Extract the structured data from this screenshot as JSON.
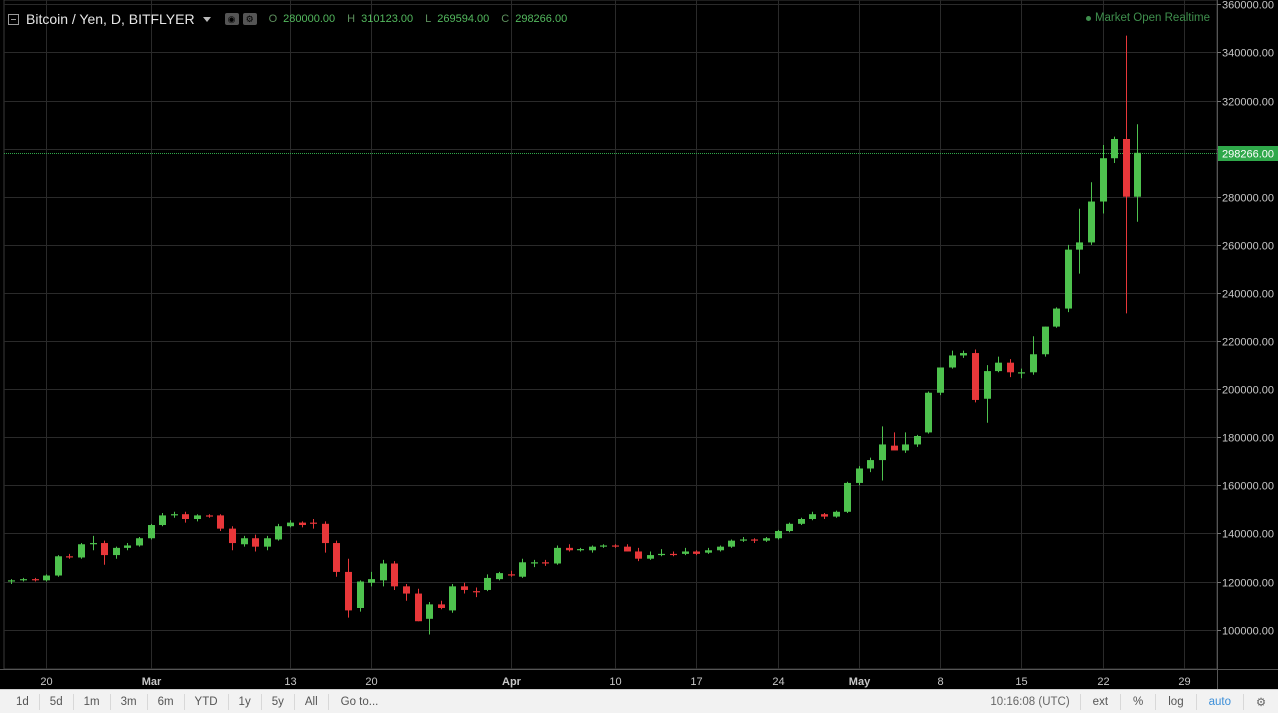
{
  "legend": {
    "title": "Bitcoin / Yen, D, BITFLYER",
    "ohlc": [
      {
        "key": "O",
        "value": "280000.00"
      },
      {
        "key": "H",
        "value": "310123.00"
      },
      {
        "key": "L",
        "value": "269594.00"
      },
      {
        "key": "C",
        "value": "298266.00"
      }
    ]
  },
  "status": {
    "text": "Market Open Realtime",
    "color": "#3f8f4d"
  },
  "colors": {
    "up": "#4ec24e",
    "down": "#e8373a",
    "grid": "#2a2a2a",
    "last_price": "#2fa84a"
  },
  "chart_data": {
    "type": "candlestick",
    "title": "Bitcoin / Yen, D, BITFLYER",
    "y_ticks": [
      "100000.00",
      "120000.00",
      "140000.00",
      "160000.00",
      "180000.00",
      "200000.00",
      "220000.00",
      "240000.00",
      "260000.00",
      "280000.00",
      "300000.00",
      "320000.00",
      "340000.00",
      "360000.00"
    ],
    "ylim": [
      88000,
      362000
    ],
    "last_price": 298266,
    "last_price_label": "298266.00",
    "x_ticks": [
      {
        "label": "20",
        "index": 3
      },
      {
        "label": "Mar",
        "index": 12,
        "bold": true
      },
      {
        "label": "13",
        "index": 24
      },
      {
        "label": "20",
        "index": 31
      },
      {
        "label": "Apr",
        "index": 43,
        "bold": true
      },
      {
        "label": "10",
        "index": 52
      },
      {
        "label": "17",
        "index": 59
      },
      {
        "label": "24",
        "index": 66
      },
      {
        "label": "May",
        "index": 73,
        "bold": true
      },
      {
        "label": "8",
        "index": 80
      },
      {
        "label": "15",
        "index": 87
      },
      {
        "label": "22",
        "index": 94
      },
      {
        "label": "29",
        "index": 101
      }
    ],
    "candles": [
      [
        120000,
        121000,
        119000,
        120500
      ],
      [
        120500,
        121500,
        120000,
        121000
      ],
      [
        121000,
        121500,
        120000,
        120500
      ],
      [
        120500,
        123000,
        120000,
        122500
      ],
      [
        122500,
        131000,
        122000,
        130500
      ],
      [
        130500,
        131500,
        129500,
        130000
      ],
      [
        130000,
        136000,
        129500,
        135500
      ],
      [
        135500,
        139000,
        133000,
        136000
      ],
      [
        136000,
        137000,
        127000,
        131000
      ],
      [
        131000,
        134500,
        129500,
        134000
      ],
      [
        134000,
        136000,
        133000,
        135000
      ],
      [
        135000,
        138500,
        134500,
        138000
      ],
      [
        138000,
        144000,
        137500,
        143500
      ],
      [
        143500,
        148500,
        143000,
        147500
      ],
      [
        147500,
        149000,
        146500,
        148000
      ],
      [
        148000,
        149000,
        144500,
        146000
      ],
      [
        146000,
        148000,
        145000,
        147500
      ],
      [
        147500,
        148000,
        146500,
        147000
      ],
      [
        147500,
        148000,
        141000,
        142000
      ],
      [
        142000,
        143000,
        133000,
        136000
      ],
      [
        135500,
        139000,
        134500,
        138000
      ],
      [
        138000,
        139500,
        132500,
        134500
      ],
      [
        134500,
        139000,
        133000,
        138000
      ],
      [
        137500,
        144000,
        137000,
        143000
      ],
      [
        143000,
        145500,
        142500,
        144500
      ],
      [
        144500,
        145000,
        142500,
        143500
      ],
      [
        144500,
        146000,
        142000,
        144000
      ],
      [
        144000,
        145000,
        132000,
        136000
      ],
      [
        136000,
        137000,
        122000,
        124000
      ],
      [
        124000,
        129500,
        105000,
        108000
      ],
      [
        109000,
        120500,
        107500,
        120000
      ],
      [
        119500,
        124000,
        118000,
        121000
      ],
      [
        120500,
        129000,
        118000,
        127500
      ],
      [
        127500,
        128500,
        116500,
        118000
      ],
      [
        118000,
        119000,
        112000,
        115000
      ],
      [
        115000,
        117000,
        103500,
        103500
      ],
      [
        104500,
        111500,
        98000,
        110500
      ],
      [
        110500,
        112000,
        108500,
        109000
      ],
      [
        108000,
        119000,
        107000,
        118000
      ],
      [
        118000,
        119500,
        115000,
        116500
      ],
      [
        116000,
        117500,
        113500,
        115500
      ],
      [
        116500,
        123000,
        116000,
        121500
      ],
      [
        121000,
        124000,
        120500,
        123500
      ],
      [
        123000,
        124500,
        122000,
        122500
      ],
      [
        122000,
        129500,
        121500,
        128000
      ],
      [
        127500,
        129000,
        126000,
        128000
      ],
      [
        128000,
        129000,
        126500,
        127500
      ],
      [
        127500,
        135000,
        127000,
        134000
      ],
      [
        134000,
        135500,
        132500,
        133000
      ],
      [
        133000,
        134000,
        132500,
        133500
      ],
      [
        133000,
        135000,
        132000,
        134500
      ],
      [
        134500,
        135500,
        134000,
        135000
      ],
      [
        135000,
        135500,
        134000,
        134500
      ],
      [
        134500,
        135500,
        132500,
        132500
      ],
      [
        132500,
        134000,
        128500,
        129500
      ],
      [
        129500,
        132500,
        129000,
        131000
      ],
      [
        131000,
        133500,
        130500,
        131500
      ],
      [
        131500,
        132500,
        130500,
        131000
      ],
      [
        131500,
        134000,
        131000,
        132500
      ],
      [
        132500,
        133000,
        131000,
        131500
      ],
      [
        132000,
        134000,
        131500,
        133000
      ],
      [
        133000,
        135000,
        132500,
        134500
      ],
      [
        134500,
        137500,
        134000,
        137000
      ],
      [
        137000,
        138500,
        136500,
        137500
      ],
      [
        137500,
        138000,
        136000,
        137000
      ],
      [
        137000,
        138500,
        136500,
        138000
      ],
      [
        138000,
        141500,
        137500,
        141000
      ],
      [
        141000,
        144500,
        140500,
        144000
      ],
      [
        144000,
        146500,
        143500,
        146000
      ],
      [
        146000,
        149000,
        145500,
        148000
      ],
      [
        148000,
        148500,
        146000,
        147000
      ],
      [
        147000,
        149500,
        146500,
        149000
      ],
      [
        149000,
        161500,
        148500,
        161000
      ],
      [
        161000,
        168000,
        160000,
        167000
      ],
      [
        167000,
        171500,
        165500,
        170500
      ],
      [
        170500,
        184500,
        162000,
        177000
      ],
      [
        176500,
        182000,
        175000,
        174500
      ],
      [
        174500,
        182000,
        173500,
        177000
      ],
      [
        177000,
        181000,
        176000,
        180500
      ],
      [
        182000,
        199000,
        181500,
        198500
      ],
      [
        198500,
        207500,
        197500,
        209000
      ],
      [
        209000,
        216000,
        208500,
        214000
      ],
      [
        214000,
        216000,
        213000,
        215000
      ],
      [
        215000,
        216500,
        194500,
        195500
      ],
      [
        196000,
        210000,
        186000,
        207500
      ],
      [
        207500,
        213500,
        207000,
        211000
      ],
      [
        211000,
        212500,
        205000,
        207000
      ],
      [
        206500,
        208500,
        204500,
        207000
      ],
      [
        207000,
        222000,
        206000,
        214500
      ],
      [
        214500,
        226000,
        213500,
        226000
      ],
      [
        226000,
        234000,
        225500,
        233500
      ],
      [
        233500,
        260000,
        232000,
        258000
      ],
      [
        258000,
        275000,
        248000,
        261000
      ],
      [
        261000,
        286000,
        260000,
        278000
      ],
      [
        278000,
        301500,
        273000,
        296000
      ],
      [
        296000,
        305000,
        294000,
        304000
      ],
      [
        304000,
        347000,
        231500,
        280000
      ],
      [
        280000,
        310123,
        269594,
        298266
      ]
    ]
  },
  "bottom_bar": {
    "ranges": [
      "1d",
      "5d",
      "1m",
      "3m",
      "6m",
      "YTD",
      "1y",
      "5y",
      "All"
    ],
    "goto": "Go to...",
    "time": "10:16:08 (UTC)",
    "options": [
      {
        "label": "ext",
        "active": false
      },
      {
        "label": "%",
        "active": false
      },
      {
        "label": "log",
        "active": false
      },
      {
        "label": "auto",
        "active": true
      }
    ],
    "settings_icon": "gear-icon"
  }
}
